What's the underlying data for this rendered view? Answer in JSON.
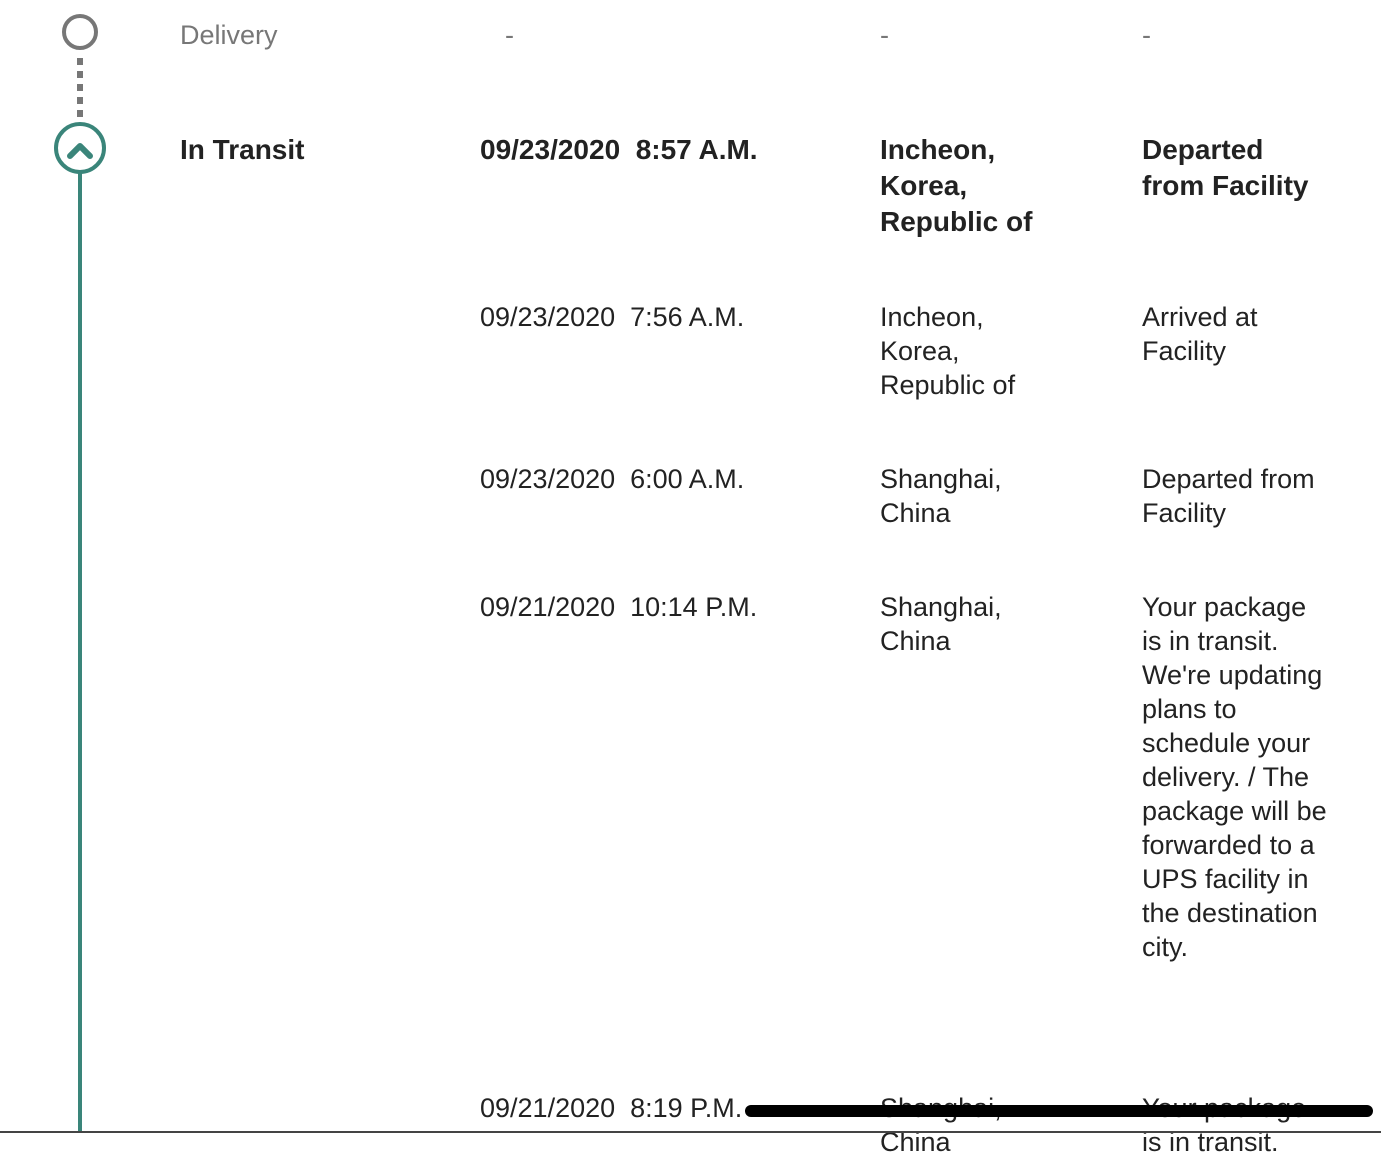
{
  "colors": {
    "accent": "#3a857a",
    "pending": "#777777"
  },
  "milestones": [
    {
      "label": "Delivery",
      "date": "-",
      "location": "-",
      "activity": "-",
      "state": "pending",
      "icon": "empty-circle-icon"
    },
    {
      "label": "In Transit",
      "state": "current",
      "icon": "chevron-up-icon",
      "events": [
        {
          "date": "09/23/2020  8:57 A.M.",
          "location": "Incheon, Korea, Republic of",
          "activity": "Departed from Facility"
        },
        {
          "date": "09/23/2020  7:56 A.M.",
          "location": "Incheon, Korea, Republic of",
          "activity": "Arrived at Facility"
        },
        {
          "date": "09/23/2020  6:00 A.M.",
          "location": "Shanghai, China",
          "activity": "Departed from Facility"
        },
        {
          "date": "09/21/2020  10:14 P.M.",
          "location": "Shanghai, China",
          "activity": "Your package is in transit. We're updating plans to schedule your delivery. / The package will be forwarded to a UPS facility in the destination city."
        },
        {
          "date": "09/21/2020  8:19 P.M.",
          "location": "Shanghai, China",
          "activity": "Your package is in transit."
        }
      ]
    }
  ]
}
